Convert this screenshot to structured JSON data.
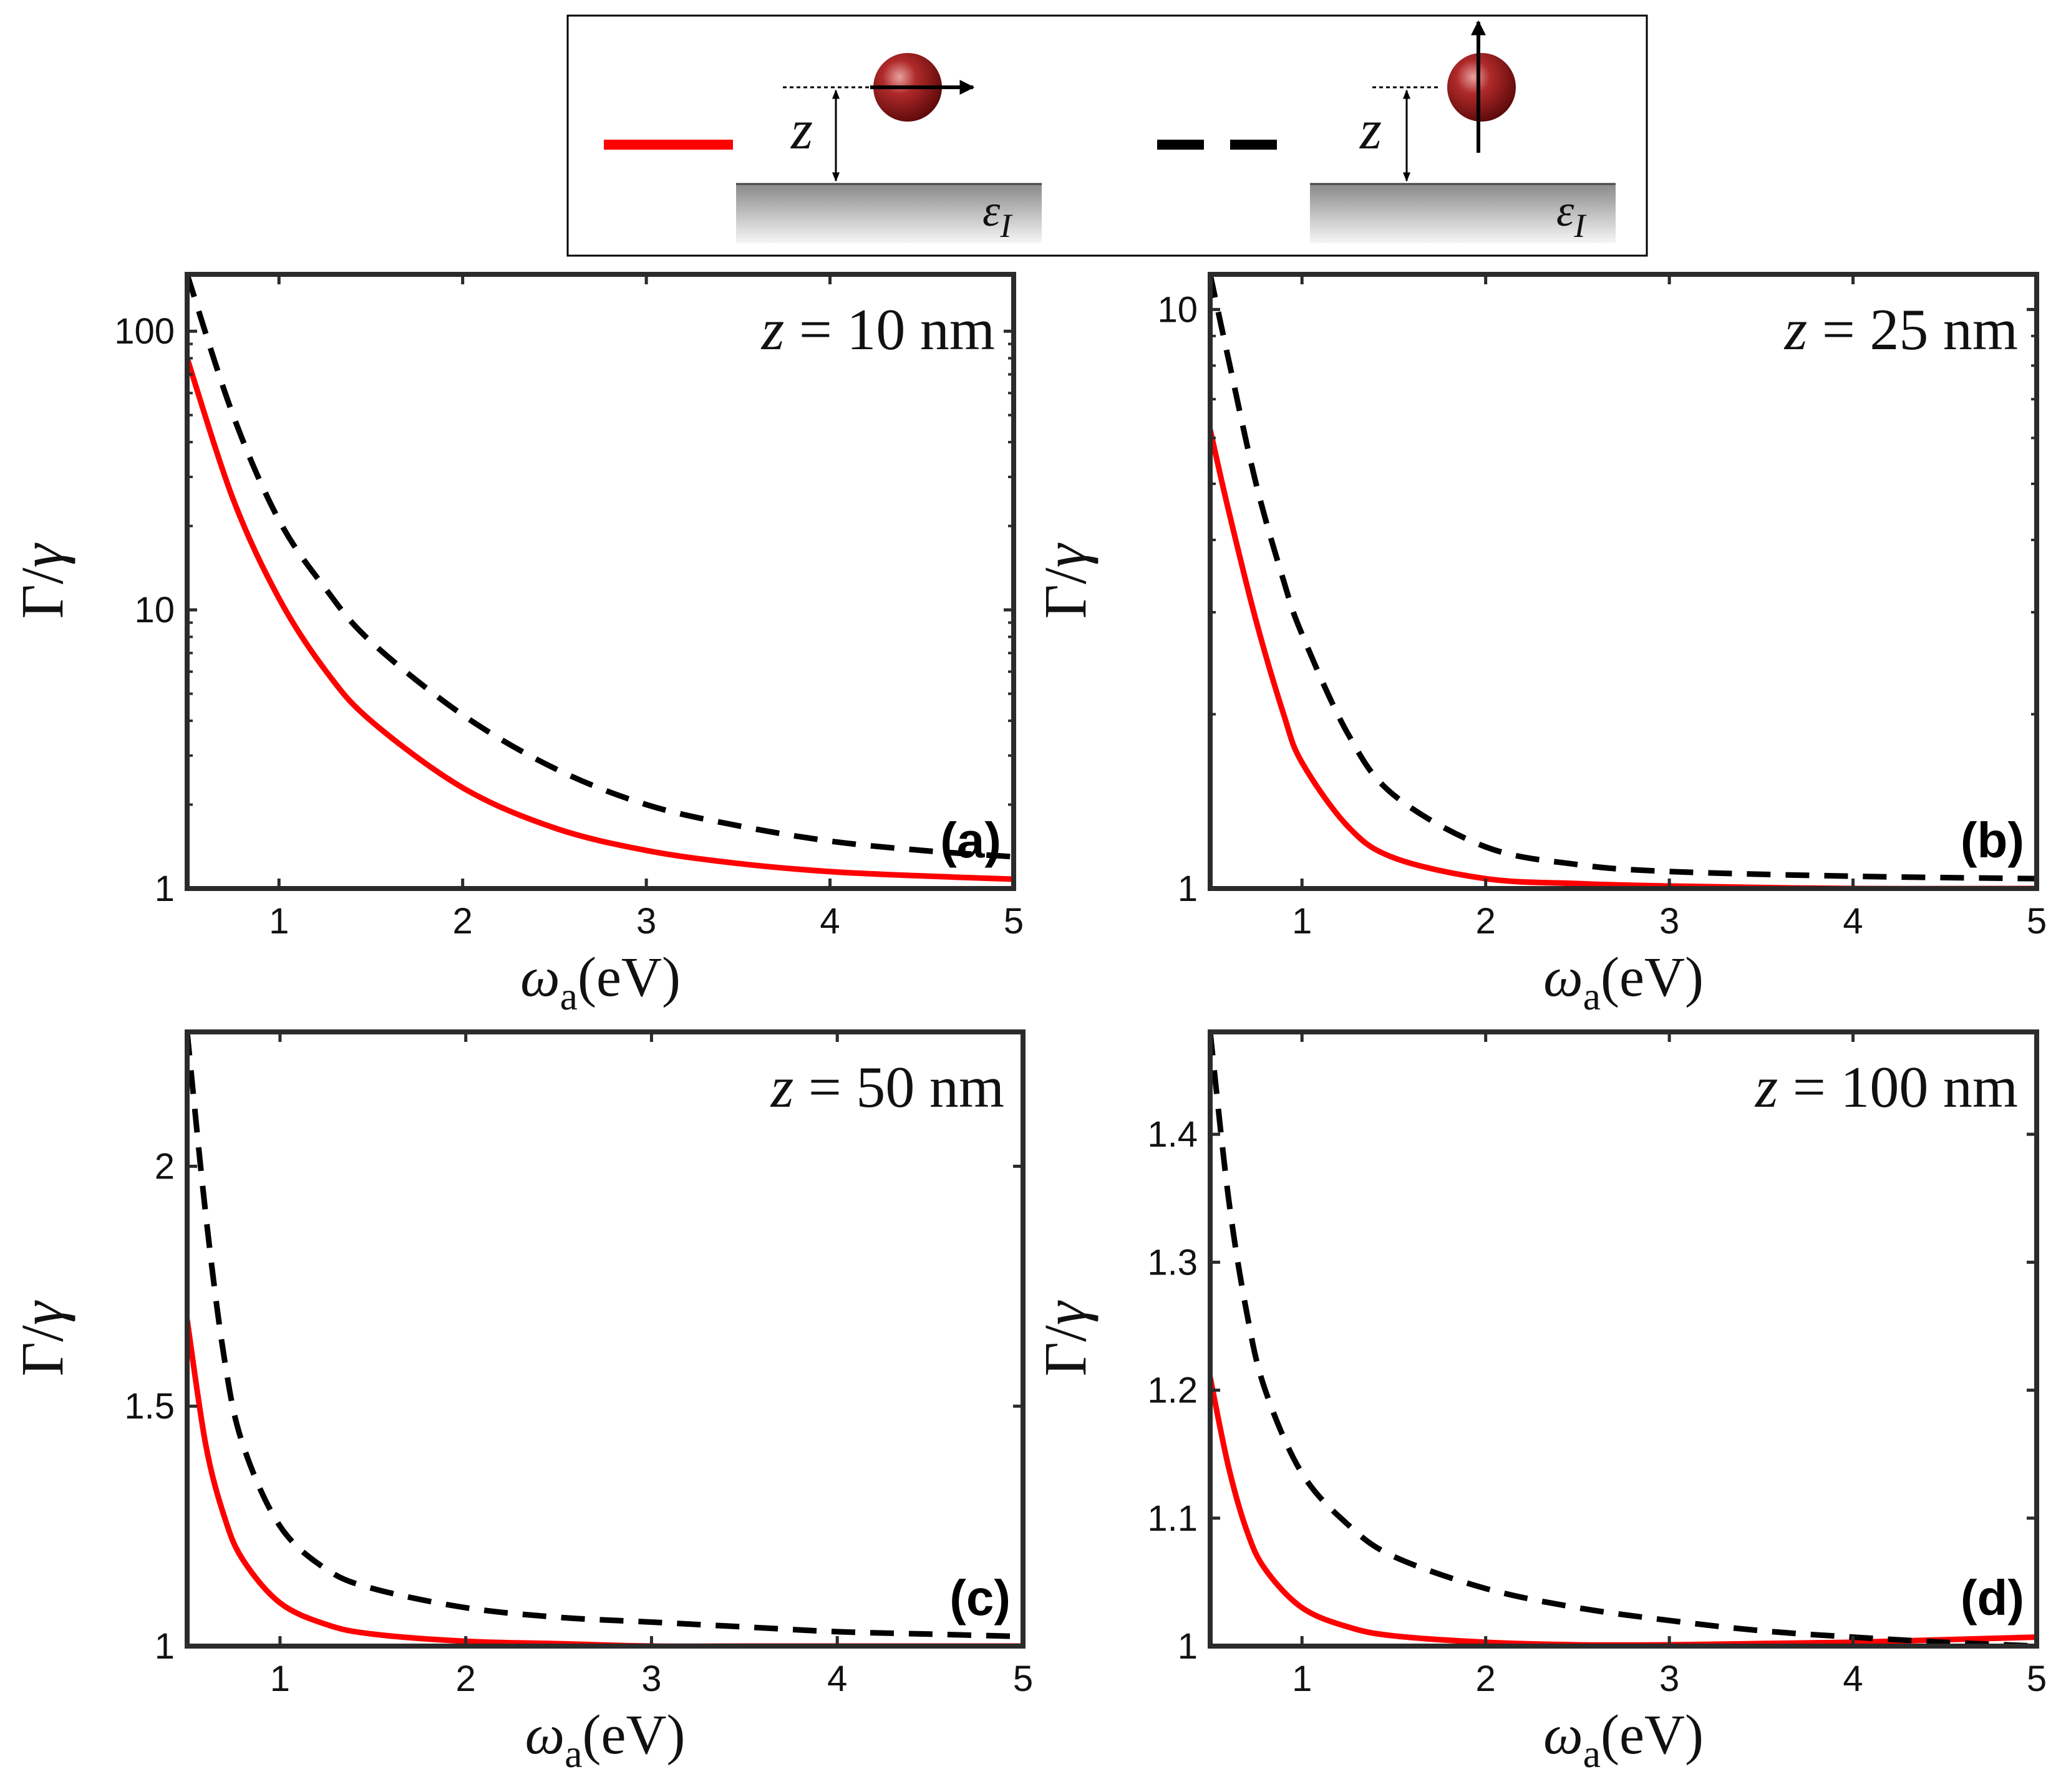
{
  "legend": {
    "entries": [
      {
        "id": "parallel",
        "line_style": "solid",
        "color": "#ff0000",
        "distance_label": "z",
        "substrate_label": "εI",
        "dipole_orientation": "parallel"
      },
      {
        "id": "perpendicular",
        "line_style": "dashed",
        "color": "#000000",
        "distance_label": "z",
        "substrate_label": "εI",
        "dipole_orientation": "perpendicular"
      }
    ]
  },
  "chart_data": [
    {
      "type": "line",
      "panel": "(a)",
      "annotation": "z = 10 nm",
      "xlabel": "ωa(eV)",
      "ylabel": "Γ/γ",
      "xlim": [
        0.5,
        5
      ],
      "yscale": "log",
      "ylim": [
        1,
        160
      ],
      "xticks": [
        1,
        2,
        3,
        4,
        5
      ],
      "yticks": [
        1,
        10,
        100
      ],
      "x": [
        0.5,
        0.75,
        1.0,
        1.25,
        1.5,
        2.0,
        2.5,
        3.0,
        3.5,
        4.0,
        4.5,
        5.0
      ],
      "series": [
        {
          "name": "parallel",
          "style": "solid",
          "color": "#ff0000",
          "values": [
            80,
            25,
            11,
            6.1,
            4.0,
            2.3,
            1.65,
            1.37,
            1.23,
            1.15,
            1.11,
            1.08
          ]
        },
        {
          "name": "perpendicular",
          "style": "dashed",
          "color": "#000000",
          "values": [
            160,
            50,
            21,
            12,
            7.7,
            4.2,
            2.7,
            2.0,
            1.68,
            1.48,
            1.37,
            1.3
          ]
        }
      ]
    },
    {
      "type": "line",
      "panel": "(b)",
      "annotation": "z = 25 nm",
      "xlabel": "ωa(eV)",
      "ylabel": "Γ/γ",
      "xlim": [
        0.5,
        5
      ],
      "yscale": "log",
      "ylim": [
        1,
        11.5
      ],
      "xticks": [
        1,
        2,
        3,
        4,
        5
      ],
      "yticks": [
        1,
        10
      ],
      "x": [
        0.5,
        0.6,
        0.75,
        0.9,
        1.0,
        1.25,
        1.5,
        2.0,
        2.5,
        3.0,
        4.0,
        5.0
      ],
      "series": [
        {
          "name": "parallel",
          "style": "solid",
          "color": "#ff0000",
          "values": [
            6.2,
            4.5,
            2.9,
            2.0,
            1.65,
            1.28,
            1.13,
            1.04,
            1.02,
            1.01,
            1.0,
            1.0
          ]
        },
        {
          "name": "perpendicular",
          "style": "dashed",
          "color": "#000000",
          "values": [
            11.5,
            8.2,
            5.0,
            3.4,
            2.75,
            1.85,
            1.45,
            1.18,
            1.1,
            1.07,
            1.05,
            1.04
          ]
        }
      ]
    },
    {
      "type": "line",
      "panel": "(c)",
      "annotation": "z = 50 nm",
      "xlabel": "ωa(eV)",
      "ylabel": "Γ/γ",
      "xlim": [
        0.5,
        5
      ],
      "yscale": "linear",
      "ylim": [
        1,
        2.28
      ],
      "xticks": [
        1,
        2,
        3,
        4,
        5
      ],
      "yticks": [
        1,
        1.5,
        2
      ],
      "x": [
        0.5,
        0.6,
        0.7,
        0.8,
        1.0,
        1.25,
        1.5,
        2.0,
        2.5,
        3.0,
        3.5,
        4.0,
        4.5,
        5.0
      ],
      "series": [
        {
          "name": "parallel",
          "style": "solid",
          "color": "#ff0000",
          "values": [
            1.68,
            1.42,
            1.27,
            1.18,
            1.09,
            1.045,
            1.025,
            1.01,
            1.005,
            1.0,
            1.0,
            1.0,
            1.0,
            1.0
          ]
        },
        {
          "name": "perpendicular",
          "style": "dashed",
          "color": "#000000",
          "values": [
            2.28,
            1.9,
            1.6,
            1.42,
            1.25,
            1.16,
            1.12,
            1.08,
            1.06,
            1.05,
            1.04,
            1.03,
            1.025,
            1.02
          ]
        }
      ]
    },
    {
      "type": "line",
      "panel": "(d)",
      "annotation": "z = 100 nm",
      "xlabel": "ωa(eV)",
      "ylabel": "Γ/γ",
      "xlim": [
        0.5,
        5
      ],
      "yscale": "linear",
      "ylim": [
        1,
        1.48
      ],
      "xticks": [
        1,
        2,
        3,
        4,
        5
      ],
      "yticks": [
        1,
        1.1,
        1.2,
        1.3,
        1.4
      ],
      "x": [
        0.5,
        0.6,
        0.7,
        0.8,
        1.0,
        1.25,
        1.5,
        2.0,
        2.5,
        3.0,
        3.5,
        4.0,
        4.5,
        5.0
      ],
      "series": [
        {
          "name": "parallel",
          "style": "solid",
          "color": "#ff0000",
          "values": [
            1.21,
            1.14,
            1.09,
            1.06,
            1.03,
            1.015,
            1.008,
            1.003,
            1.001,
            1.001,
            1.002,
            1.003,
            1.005,
            1.007
          ]
        },
        {
          "name": "perpendicular",
          "style": "dashed",
          "color": "#000000",
          "values": [
            1.48,
            1.35,
            1.26,
            1.2,
            1.135,
            1.095,
            1.07,
            1.045,
            1.03,
            1.02,
            1.012,
            1.007,
            1.003,
            1.0
          ]
        }
      ]
    }
  ]
}
